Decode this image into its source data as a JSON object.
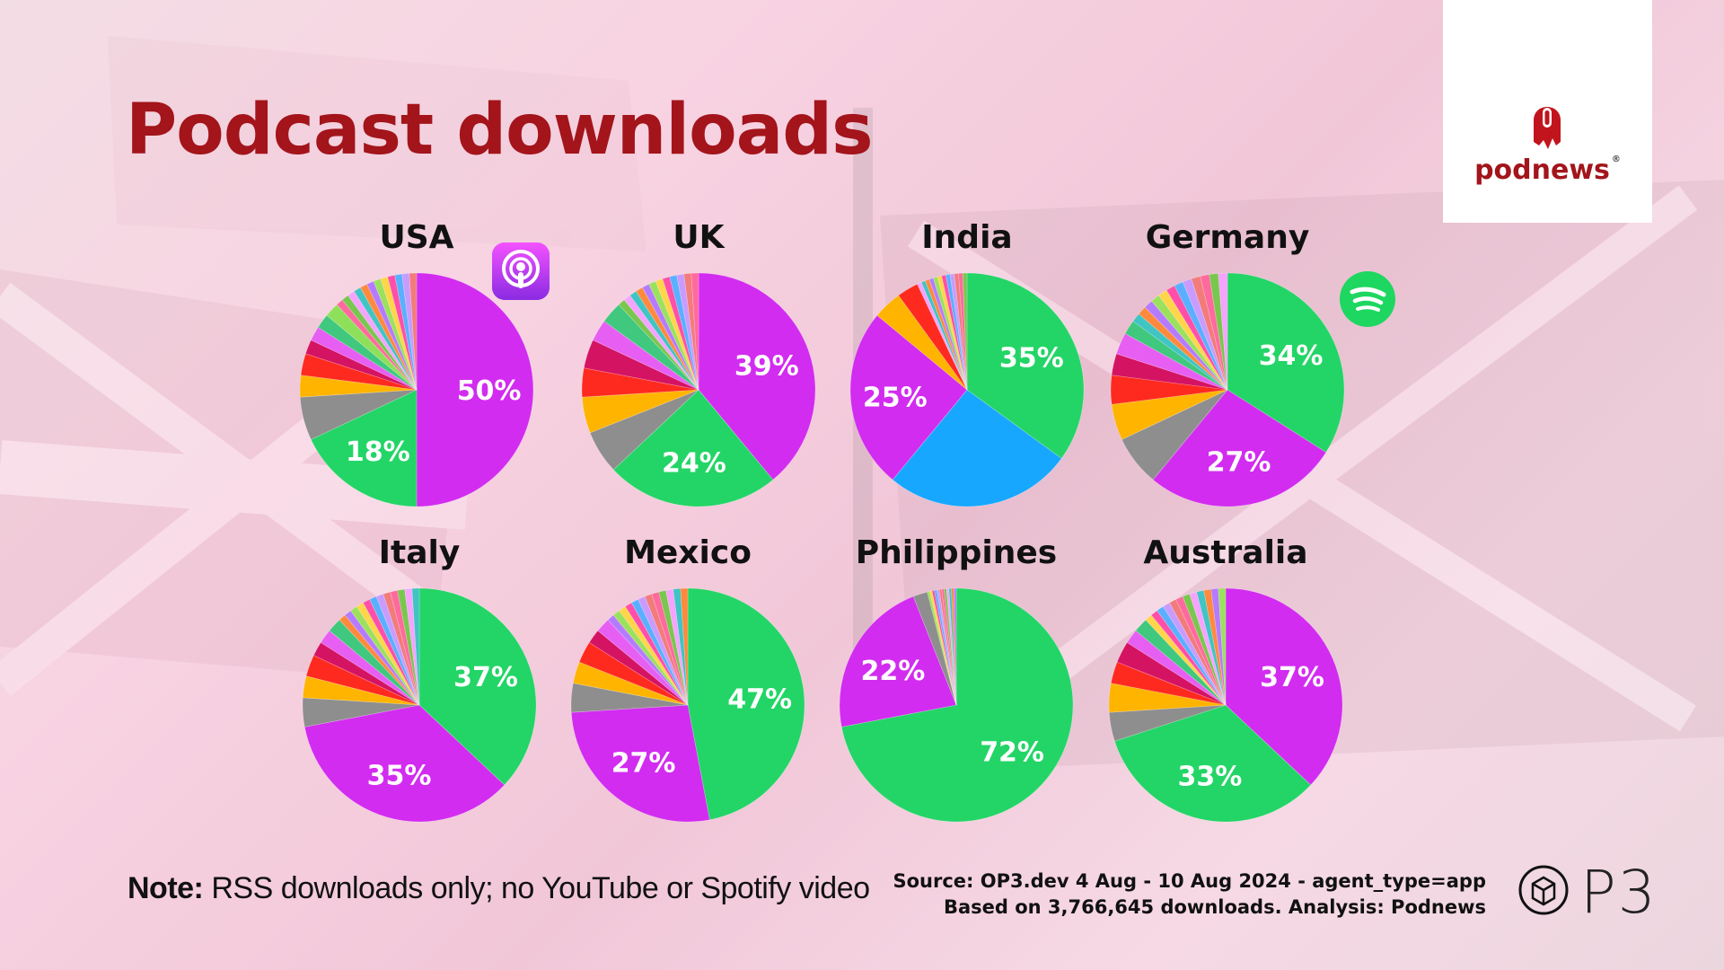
{
  "title": "Podcast downloads",
  "brand": {
    "logo_text": "podnews",
    "registered": "®"
  },
  "footer": {
    "note_bold": "Note:",
    "note_text": " RSS downloads only; no YouTube or Spotify video",
    "source_line1": "Source: OP3.dev 4 Aug - 10 Aug 2024 - agent_type=app",
    "source_line2": "Based on 3,766,645 downloads. Analysis: Podnews",
    "op3_text": "P3"
  },
  "colors": {
    "purple": "#d22cf0",
    "green": "#23d566",
    "blue": "#17a7ff",
    "gray": "#8e8e8e",
    "yellow": "#ffb400",
    "red": "#ff2a1f",
    "crimson": "#d51363",
    "accent_title": "#a3141b"
  },
  "icons": [
    "apple-podcasts-icon",
    "spotify-icon",
    "podnews-logo-icon",
    "op3-logo-icon"
  ],
  "chart_data": [
    {
      "type": "pie",
      "title": "USA",
      "slices": [
        {
          "color": "purple",
          "value": 50,
          "label": "50%"
        },
        {
          "color": "green",
          "value": 18,
          "label": "18%"
        },
        {
          "color": "gray",
          "value": 6,
          "label": ""
        },
        {
          "color": "yellow",
          "value": 3,
          "label": ""
        },
        {
          "color": "red",
          "value": 3,
          "label": ""
        },
        {
          "color": "crimson",
          "value": 2,
          "label": ""
        },
        {
          "color": "pink",
          "value": 2,
          "label": ""
        },
        {
          "color": "teal",
          "value": 2,
          "label": ""
        },
        {
          "color": "lime",
          "value": 2,
          "label": ""
        },
        {
          "color": "other",
          "value": 12,
          "label": ""
        }
      ]
    },
    {
      "type": "pie",
      "title": "UK",
      "slices": [
        {
          "color": "purple",
          "value": 39,
          "label": "39%"
        },
        {
          "color": "green",
          "value": 24,
          "label": "24%"
        },
        {
          "color": "gray",
          "value": 6,
          "label": ""
        },
        {
          "color": "yellow",
          "value": 5,
          "label": ""
        },
        {
          "color": "red",
          "value": 4,
          "label": ""
        },
        {
          "color": "crimson",
          "value": 4,
          "label": ""
        },
        {
          "color": "pink",
          "value": 3,
          "label": ""
        },
        {
          "color": "teal",
          "value": 3,
          "label": ""
        },
        {
          "color": "other",
          "value": 12,
          "label": ""
        }
      ]
    },
    {
      "type": "pie",
      "title": "India",
      "slices": [
        {
          "color": "green",
          "value": 35,
          "label": "35%"
        },
        {
          "color": "blue",
          "value": 26,
          "label": ""
        },
        {
          "color": "purple",
          "value": 25,
          "label": "25%"
        },
        {
          "color": "yellow",
          "value": 4,
          "label": ""
        },
        {
          "color": "red",
          "value": 3,
          "label": ""
        },
        {
          "color": "other",
          "value": 7,
          "label": ""
        }
      ]
    },
    {
      "type": "pie",
      "title": "Germany",
      "slices": [
        {
          "color": "green",
          "value": 34,
          "label": "34%"
        },
        {
          "color": "purple",
          "value": 27,
          "label": "27%"
        },
        {
          "color": "gray",
          "value": 7,
          "label": ""
        },
        {
          "color": "yellow",
          "value": 5,
          "label": ""
        },
        {
          "color": "red",
          "value": 4,
          "label": ""
        },
        {
          "color": "crimson",
          "value": 3,
          "label": ""
        },
        {
          "color": "pink",
          "value": 3,
          "label": ""
        },
        {
          "color": "teal",
          "value": 2,
          "label": ""
        },
        {
          "color": "other",
          "value": 15,
          "label": ""
        }
      ]
    },
    {
      "type": "pie",
      "title": "Italy",
      "slices": [
        {
          "color": "green",
          "value": 37,
          "label": "37%"
        },
        {
          "color": "purple",
          "value": 35,
          "label": "35%"
        },
        {
          "color": "gray",
          "value": 4,
          "label": ""
        },
        {
          "color": "yellow",
          "value": 3,
          "label": ""
        },
        {
          "color": "red",
          "value": 3,
          "label": ""
        },
        {
          "color": "crimson",
          "value": 2,
          "label": ""
        },
        {
          "color": "pink",
          "value": 2,
          "label": ""
        },
        {
          "color": "teal",
          "value": 2,
          "label": ""
        },
        {
          "color": "other",
          "value": 12,
          "label": ""
        }
      ]
    },
    {
      "type": "pie",
      "title": "Mexico",
      "slices": [
        {
          "color": "green",
          "value": 47,
          "label": "47%"
        },
        {
          "color": "purple",
          "value": 27,
          "label": "27%"
        },
        {
          "color": "gray",
          "value": 4,
          "label": ""
        },
        {
          "color": "yellow",
          "value": 3,
          "label": ""
        },
        {
          "color": "red",
          "value": 3,
          "label": ""
        },
        {
          "color": "crimson",
          "value": 2,
          "label": ""
        },
        {
          "color": "pink",
          "value": 2,
          "label": ""
        },
        {
          "color": "other",
          "value": 12,
          "label": ""
        }
      ]
    },
    {
      "type": "pie",
      "title": "Philippines",
      "slices": [
        {
          "color": "green",
          "value": 72,
          "label": "72%"
        },
        {
          "color": "purple",
          "value": 22,
          "label": "22%"
        },
        {
          "color": "gray",
          "value": 2,
          "label": ""
        },
        {
          "color": "other",
          "value": 4,
          "label": ""
        }
      ]
    },
    {
      "type": "pie",
      "title": "Australia",
      "slices": [
        {
          "color": "purple",
          "value": 37,
          "label": "37%"
        },
        {
          "color": "green",
          "value": 33,
          "label": "33%"
        },
        {
          "color": "gray",
          "value": 4,
          "label": ""
        },
        {
          "color": "yellow",
          "value": 4,
          "label": ""
        },
        {
          "color": "red",
          "value": 3,
          "label": ""
        },
        {
          "color": "crimson",
          "value": 3,
          "label": ""
        },
        {
          "color": "pink",
          "value": 2,
          "label": ""
        },
        {
          "color": "teal",
          "value": 2,
          "label": ""
        },
        {
          "color": "other",
          "value": 12,
          "label": ""
        }
      ]
    }
  ]
}
